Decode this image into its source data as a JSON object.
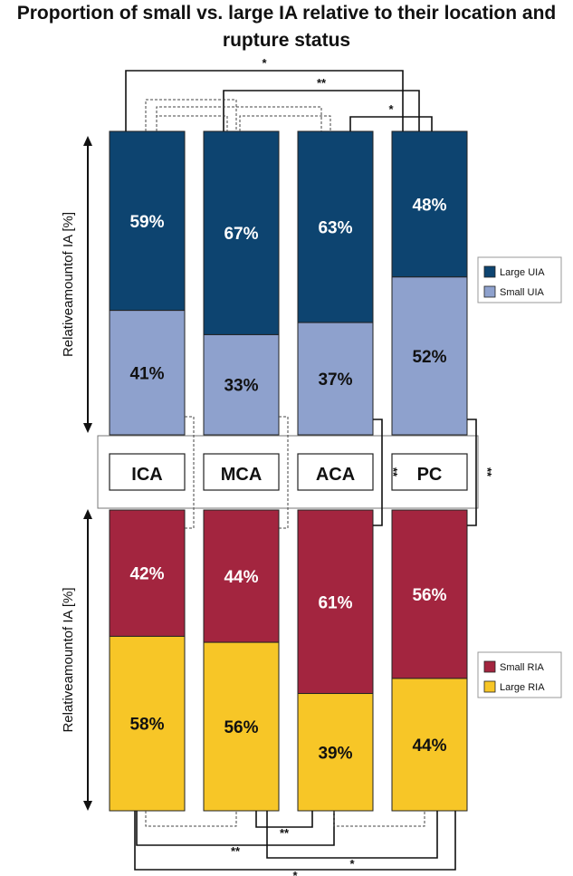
{
  "title": "Proportion of small vs. large IA relative to their location and rupture status",
  "colors": {
    "large_uia": "#0d4470",
    "small_uia": "#8ea1cd",
    "small_ria": "#a3253f",
    "large_ria": "#f7c627"
  },
  "chart_data": [
    {
      "type": "bar",
      "stacked": true,
      "categories": [
        "ICA",
        "MCA",
        "ACA",
        "PC"
      ],
      "ylabel": "Relativeamountof IA [%]",
      "ylim": [
        0,
        100
      ],
      "legend": {
        "placement": "right"
      },
      "series": [
        {
          "name": "Small UIA",
          "values": [
            41,
            33,
            37,
            52
          ],
          "labels": [
            "41%",
            "33%",
            "37%",
            "52%"
          ]
        },
        {
          "name": "Large UIA",
          "values": [
            59,
            67,
            63,
            48
          ],
          "labels": [
            "59%",
            "67%",
            "63%",
            "48%"
          ]
        }
      ],
      "annotations": [
        {
          "from": "ICA",
          "to": "PC",
          "label": "*"
        },
        {
          "from": "MCA",
          "to": "PC",
          "label": "**"
        },
        {
          "from": "ACA",
          "to": "PC",
          "label": "*"
        }
      ]
    },
    {
      "type": "bar",
      "stacked": true,
      "categories": [
        "ICA",
        "MCA",
        "ACA",
        "PC"
      ],
      "ylabel": "Relativeamountof IA [%]",
      "ylim": [
        0,
        100
      ],
      "legend": {
        "placement": "right"
      },
      "series": [
        {
          "name": "Small RIA",
          "values": [
            42,
            44,
            61,
            56
          ],
          "labels": [
            "42%",
            "44%",
            "61%",
            "56%"
          ]
        },
        {
          "name": "Large RIA",
          "values": [
            58,
            56,
            39,
            44
          ],
          "labels": [
            "58%",
            "56%",
            "39%",
            "44%"
          ]
        }
      ],
      "annotations": [
        {
          "from": "MCA",
          "to": "ACA",
          "label": "**"
        },
        {
          "from": "ICA",
          "to": "ACA",
          "label": "**"
        },
        {
          "from": "MCA",
          "to": "PC",
          "label": "*"
        },
        {
          "from": "ICA",
          "to": "PC",
          "label": "*"
        }
      ]
    }
  ],
  "between_markers": [
    {
      "category": "ACA",
      "label": "**"
    },
    {
      "category": "PC",
      "label": "**"
    }
  ]
}
